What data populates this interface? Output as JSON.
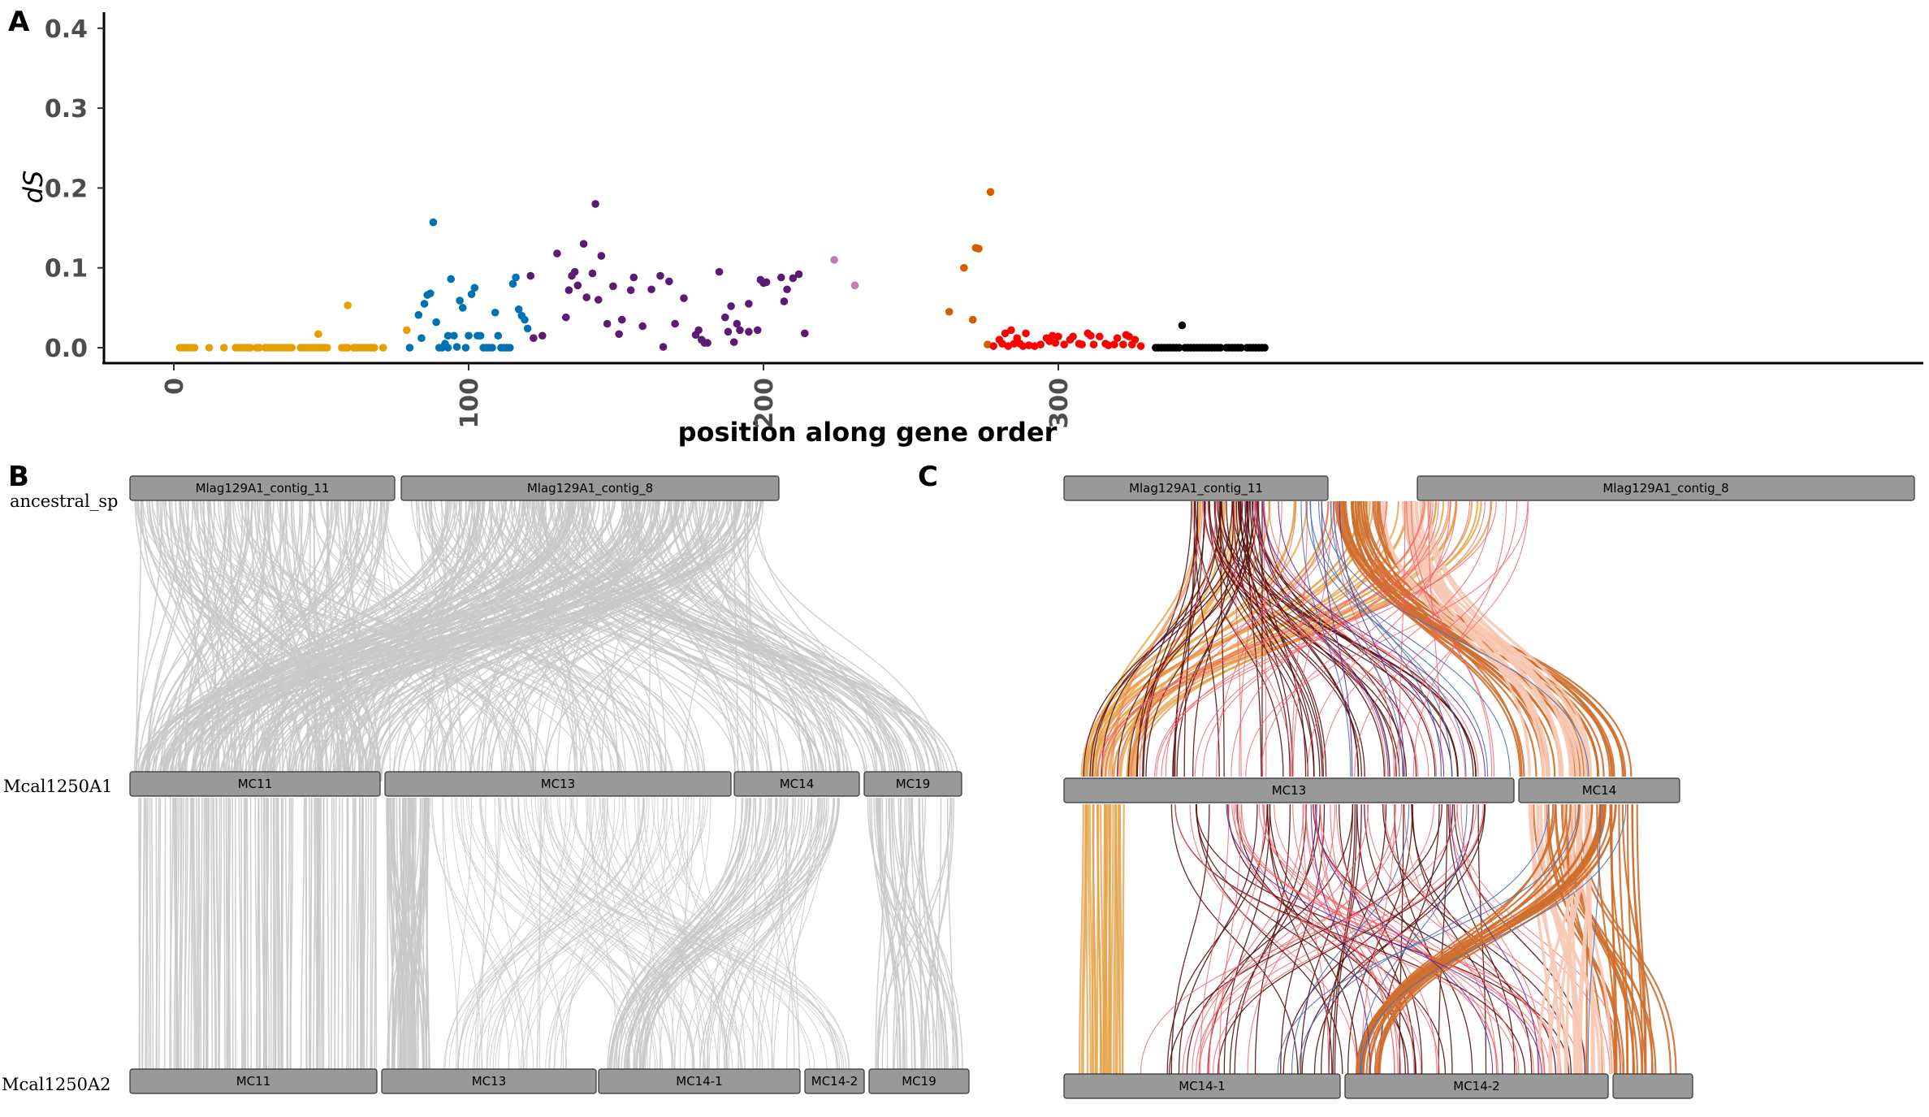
{
  "figure": {
    "panel_labels": {
      "a": "A",
      "b": "B",
      "c": "C"
    }
  },
  "chart_data": [
    {
      "panel": "A",
      "type": "scatter",
      "xlabel": "position along gene order",
      "ylabel": "dS",
      "xlim": [
        -10,
        390
      ],
      "ylim": [
        -0.017,
        0.42
      ],
      "x_ticks": [
        0,
        100,
        200,
        300
      ],
      "y_ticks": [
        0.0,
        0.1,
        0.2,
        0.3,
        0.4
      ],
      "x_tick_labels": [
        "0",
        "100",
        "200",
        "300"
      ],
      "y_tick_labels": [
        "0.0",
        "0.1",
        "0.2",
        "0.3",
        "0.4"
      ],
      "grid": false,
      "series": [
        {
          "color": "#E69F00",
          "points": [
            [
              2,
              0
            ],
            [
              3,
              0
            ],
            [
              4,
              0
            ],
            [
              5,
              0
            ],
            [
              6,
              0
            ],
            [
              7,
              0
            ],
            [
              12,
              0
            ],
            [
              17,
              0
            ],
            [
              21,
              0
            ],
            [
              22,
              0
            ],
            [
              23,
              0
            ],
            [
              24,
              0
            ],
            [
              25,
              0
            ],
            [
              26,
              0
            ],
            [
              28,
              0
            ],
            [
              29,
              0
            ],
            [
              31,
              0
            ],
            [
              32,
              0
            ],
            [
              33,
              0
            ],
            [
              34,
              0
            ],
            [
              35,
              0
            ],
            [
              36,
              0
            ],
            [
              37,
              0
            ],
            [
              38,
              0
            ],
            [
              39,
              0
            ],
            [
              40,
              0
            ],
            [
              43,
              0
            ],
            [
              44,
              0
            ],
            [
              45,
              0
            ],
            [
              46,
              0
            ],
            [
              47,
              0
            ],
            [
              48,
              0
            ],
            [
              49,
              0
            ],
            [
              50,
              0
            ],
            [
              51,
              0
            ],
            [
              52,
              0
            ],
            [
              49,
              0.017
            ],
            [
              57,
              0
            ],
            [
              58,
              0
            ],
            [
              59,
              0
            ],
            [
              59,
              0.053
            ],
            [
              61,
              0
            ],
            [
              62,
              0
            ],
            [
              63,
              0
            ],
            [
              64,
              0
            ],
            [
              65,
              0
            ],
            [
              66,
              0
            ],
            [
              67,
              0
            ],
            [
              68,
              0
            ],
            [
              71,
              0
            ],
            [
              79,
              0.022
            ]
          ]
        },
        {
          "color": "#0072B2",
          "points": [
            [
              80,
              0
            ],
            [
              83,
              0.041
            ],
            [
              84,
              0.012
            ],
            [
              85,
              0.055
            ],
            [
              86,
              0.066
            ],
            [
              87,
              0.068
            ],
            [
              88,
              0.157
            ],
            [
              89,
              0.032
            ],
            [
              90,
              0
            ],
            [
              91,
              0
            ],
            [
              92,
              0.005
            ],
            [
              93,
              0.015
            ],
            [
              93,
              0
            ],
            [
              94,
              0.086
            ],
            [
              95,
              0.015
            ],
            [
              96,
              0.001
            ],
            [
              97,
              0.059
            ],
            [
              98,
              0.05
            ],
            [
              99,
              0
            ],
            [
              100,
              0.015
            ],
            [
              101,
              0.067
            ],
            [
              102,
              0.075
            ],
            [
              103,
              0.015
            ],
            [
              104,
              0.015
            ],
            [
              105,
              0
            ],
            [
              106,
              0
            ],
            [
              107,
              0
            ],
            [
              108,
              0
            ],
            [
              109,
              0.044
            ],
            [
              110,
              0.015
            ],
            [
              111,
              0
            ],
            [
              112,
              0
            ],
            [
              113,
              0
            ],
            [
              114,
              0
            ],
            [
              115,
              0.08
            ],
            [
              116,
              0.088
            ],
            [
              117,
              0.048
            ],
            [
              118,
              0.04
            ],
            [
              119,
              0.035
            ],
            [
              120,
              0.024
            ]
          ]
        },
        {
          "color": "#5C1A74",
          "points": [
            [
              121,
              0.09
            ],
            [
              122,
              0.012
            ],
            [
              125,
              0.015
            ],
            [
              130,
              0.118
            ],
            [
              133,
              0.038
            ],
            [
              134,
              0.072
            ],
            [
              135,
              0.09
            ],
            [
              136,
              0.095
            ],
            [
              137,
              0.078
            ],
            [
              139,
              0.13
            ],
            [
              140,
              0.063
            ],
            [
              142,
              0.093
            ],
            [
              143,
              0.18
            ],
            [
              144,
              0.06
            ],
            [
              145,
              0.115
            ],
            [
              147,
              0.03
            ],
            [
              149,
              0.077
            ],
            [
              151,
              0.017
            ],
            [
              152,
              0.035
            ],
            [
              155,
              0.072
            ],
            [
              156,
              0.088
            ],
            [
              159,
              0.027
            ],
            [
              162,
              0.073
            ],
            [
              165,
              0.09
            ],
            [
              166,
              0.001
            ],
            [
              168,
              0.083
            ],
            [
              170,
              0.03
            ],
            [
              173,
              0.062
            ],
            [
              177,
              0.016
            ],
            [
              178,
              0.022
            ],
            [
              179,
              0.01
            ],
            [
              180,
              0.006
            ],
            [
              181,
              0.006
            ],
            [
              185,
              0.095
            ],
            [
              187,
              0.038
            ],
            [
              188,
              0.02
            ],
            [
              189,
              0.052
            ],
            [
              190,
              0.007
            ],
            [
              191,
              0.03
            ],
            [
              192,
              0.022
            ],
            [
              195,
              0.02
            ],
            [
              195,
              0.055
            ],
            [
              198,
              0.022
            ],
            [
              199,
              0.085
            ],
            [
              200,
              0.081
            ],
            [
              201,
              0.082
            ],
            [
              206,
              0.088
            ],
            [
              207,
              0.058
            ],
            [
              208,
              0.073
            ],
            [
              210,
              0.087
            ],
            [
              212,
              0.092
            ],
            [
              214,
              0.018
            ]
          ]
        },
        {
          "color": "#CC79A7",
          "points": [
            [
              224,
              0.11
            ],
            [
              231,
              0.078
            ]
          ]
        },
        {
          "color": "#D55E00",
          "points": [
            [
              263,
              0.045
            ],
            [
              268,
              0.1
            ],
            [
              271,
              0.035
            ],
            [
              272,
              0.125
            ],
            [
              273,
              0.124
            ],
            [
              276,
              0.004
            ],
            [
              277,
              0.195
            ]
          ]
        },
        {
          "color": "#FF0000",
          "points": [
            [
              278,
              0.002
            ],
            [
              280,
              0.01
            ],
            [
              281,
              0.005
            ],
            [
              282,
              0.018
            ],
            [
              283,
              0.002
            ],
            [
              284,
              0.022
            ],
            [
              285,
              0.005
            ],
            [
              286,
              0.012
            ],
            [
              287,
              0.005
            ],
            [
              288,
              0.002
            ],
            [
              289,
              0.018
            ],
            [
              290,
              0.003
            ],
            [
              292,
              0.002
            ],
            [
              294,
              0.004
            ],
            [
              296,
              0.012
            ],
            [
              297,
              0.008
            ],
            [
              298,
              0.015
            ],
            [
              299,
              0.006
            ],
            [
              300,
              0.014
            ],
            [
              302,
              0.004
            ],
            [
              304,
              0.01
            ],
            [
              305,
              0.014
            ],
            [
              307,
              0.005
            ],
            [
              308,
              0.004
            ],
            [
              310,
              0.018
            ],
            [
              311,
              0.015
            ],
            [
              312,
              0.004
            ],
            [
              314,
              0.014
            ],
            [
              316,
              0.005
            ],
            [
              317,
              0.003
            ],
            [
              319,
              0.004
            ],
            [
              320,
              0.012
            ],
            [
              322,
              0.004
            ],
            [
              323,
              0.016
            ],
            [
              324,
              0.014
            ],
            [
              325,
              0.004
            ],
            [
              326,
              0.01
            ],
            [
              328,
              0.002
            ]
          ]
        },
        {
          "color": "#000000",
          "points": [
            [
              333,
              0
            ],
            [
              334,
              0
            ],
            [
              335,
              0
            ],
            [
              336,
              0
            ],
            [
              337,
              0
            ],
            [
              338,
              0
            ],
            [
              339,
              0
            ],
            [
              340,
              0
            ],
            [
              341,
              0
            ],
            [
              342,
              0.028
            ],
            [
              343,
              0
            ],
            [
              344,
              0
            ],
            [
              345,
              0
            ],
            [
              346,
              0
            ],
            [
              347,
              0
            ],
            [
              348,
              0
            ],
            [
              349,
              0
            ],
            [
              350,
              0
            ],
            [
              351,
              0
            ],
            [
              352,
              0
            ],
            [
              353,
              0
            ],
            [
              354,
              0
            ],
            [
              355,
              0
            ],
            [
              357,
              0
            ],
            [
              358,
              0
            ],
            [
              359,
              0
            ],
            [
              360,
              0
            ],
            [
              361,
              0
            ],
            [
              362,
              0
            ],
            [
              364,
              0
            ],
            [
              365,
              0
            ],
            [
              366,
              0
            ],
            [
              367,
              0
            ],
            [
              368,
              0
            ],
            [
              369,
              0
            ],
            [
              370,
              0
            ]
          ]
        }
      ]
    },
    {
      "panel": "B",
      "type": "synteny",
      "genomes": [
        {
          "name": "ancestral_sp",
          "chromosomes": [
            "Mlag129A1_contig_11",
            "Mlag129A1_contig_8"
          ]
        },
        {
          "name": "Mcal1250A1",
          "chromosomes": [
            "MC11",
            "MC13",
            "MC14",
            "MC19"
          ]
        },
        {
          "name": "Mcal1250A2",
          "chromosomes": [
            "MC11",
            "MC13",
            "MC14-1",
            "MC14-2",
            "MC19"
          ]
        }
      ]
    },
    {
      "panel": "C",
      "type": "synteny",
      "genomes": [
        {
          "name": "",
          "chromosomes": [
            "Mlag129A1_contig_11",
            "Mlag129A1_contig_8"
          ]
        },
        {
          "name": "",
          "chromosomes": [
            "MC13",
            "MC14"
          ]
        },
        {
          "name": "",
          "chromosomes": [
            "MC14-1",
            "MC14-2",
            ""
          ]
        }
      ]
    }
  ]
}
